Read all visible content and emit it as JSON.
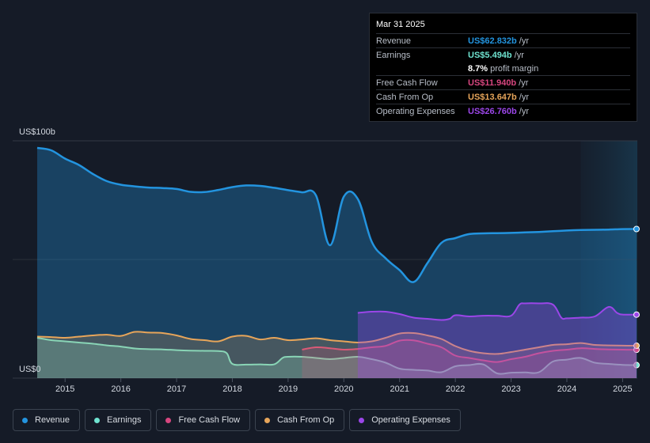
{
  "tooltip": {
    "date": "Mar 31 2025",
    "rows": [
      {
        "label": "Revenue",
        "value": "US$62.832b",
        "unit": "/yr",
        "color": "#2394df"
      },
      {
        "label": "Earnings",
        "value": "US$5.494b",
        "unit": "/yr",
        "color": "#6fe3d0"
      },
      {
        "label": "",
        "value": "8.7%",
        "unit": "profit margin",
        "color": "#ffffff"
      },
      {
        "label": "Free Cash Flow",
        "value": "US$11.940b",
        "unit": "/yr",
        "color": "#d7467f"
      },
      {
        "label": "Cash From Op",
        "value": "US$13.647b",
        "unit": "/yr",
        "color": "#e7a55a"
      },
      {
        "label": "Operating Expenses",
        "value": "US$26.760b",
        "unit": "/yr",
        "color": "#9b46e8"
      }
    ]
  },
  "legend": [
    {
      "label": "Revenue",
      "color": "#2394df"
    },
    {
      "label": "Earnings",
      "color": "#6fe3d0"
    },
    {
      "label": "Free Cash Flow",
      "color": "#d7467f"
    },
    {
      "label": "Cash From Op",
      "color": "#e7a55a"
    },
    {
      "label": "Operating Expenses",
      "color": "#9b46e8"
    }
  ],
  "chart_data": {
    "type": "area",
    "title": "",
    "y_unit": "US$ billions",
    "ylim": [
      0,
      100
    ],
    "y_tick_labels": [
      {
        "value": 100,
        "label": "US$100b"
      },
      {
        "value": 0,
        "label": "US$0"
      }
    ],
    "xlim": [
      2014.5,
      2025.25
    ],
    "x_tick_labels": [
      "2015",
      "2016",
      "2017",
      "2018",
      "2019",
      "2020",
      "2021",
      "2022",
      "2023",
      "2024",
      "2025"
    ],
    "forecast_shade_start": 2024.25,
    "series": [
      {
        "name": "Revenue",
        "color": "#2394df",
        "x": [
          2014.5,
          2014.75,
          2015.0,
          2015.25,
          2015.5,
          2015.75,
          2016.0,
          2016.25,
          2016.5,
          2016.75,
          2017.0,
          2017.25,
          2017.5,
          2017.75,
          2018.0,
          2018.25,
          2018.5,
          2018.75,
          2019.0,
          2019.25,
          2019.5,
          2019.75,
          2020.0,
          2020.25,
          2020.5,
          2020.75,
          2021.0,
          2021.25,
          2021.5,
          2021.75,
          2022.0,
          2022.25,
          2022.5,
          2022.75,
          2023.0,
          2023.25,
          2023.5,
          2023.75,
          2024.0,
          2024.25,
          2024.5,
          2024.75,
          2025.0,
          2025.25
        ],
        "values": [
          97.0,
          96.0,
          92.5,
          89.8,
          86.0,
          83.0,
          81.5,
          80.8,
          80.3,
          80.1,
          79.7,
          78.5,
          78.4,
          79.3,
          80.5,
          81.2,
          81.0,
          80.2,
          79.2,
          78.3,
          77.0,
          56.0,
          76.5,
          75.5,
          57.5,
          50.5,
          45.5,
          40.5,
          48.5,
          57.0,
          59.0,
          60.7,
          61.0,
          61.1,
          61.2,
          61.4,
          61.6,
          61.9,
          62.2,
          62.4,
          62.5,
          62.6,
          62.8,
          62.83
        ]
      },
      {
        "name": "Earnings",
        "color": "#6fe3d0",
        "x": [
          2014.5,
          2014.75,
          2015.0,
          2015.25,
          2015.5,
          2015.75,
          2016.0,
          2016.25,
          2016.5,
          2016.75,
          2017.0,
          2017.25,
          2017.5,
          2017.75,
          2017.9,
          2018.0,
          2018.25,
          2018.5,
          2018.75,
          2018.9,
          2019.0,
          2019.25,
          2019.5,
          2019.75,
          2020.0,
          2020.25,
          2020.5,
          2020.75,
          2021.0,
          2021.25,
          2021.5,
          2021.75,
          2022.0,
          2022.25,
          2022.5,
          2022.75,
          2023.0,
          2023.25,
          2023.5,
          2023.75,
          2024.0,
          2024.25,
          2024.5,
          2024.75,
          2025.0,
          2025.25
        ],
        "values": [
          17.0,
          16.0,
          15.5,
          15.0,
          14.5,
          13.8,
          13.3,
          12.5,
          12.2,
          12.1,
          11.8,
          11.6,
          11.5,
          11.4,
          10.5,
          6.0,
          5.7,
          5.8,
          5.8,
          8.5,
          9.0,
          9.0,
          8.5,
          8.0,
          8.5,
          9.0,
          8.0,
          6.5,
          4.0,
          3.5,
          3.2,
          2.5,
          5.0,
          5.5,
          5.8,
          2.0,
          2.3,
          2.4,
          2.5,
          7.0,
          7.8,
          8.5,
          6.5,
          6.0,
          5.6,
          5.49
        ]
      },
      {
        "name": "Free Cash Flow",
        "color": "#d7467f",
        "x": [
          2019.25,
          2019.5,
          2019.75,
          2020.0,
          2020.25,
          2020.5,
          2020.75,
          2021.0,
          2021.25,
          2021.5,
          2021.75,
          2022.0,
          2022.25,
          2022.5,
          2022.75,
          2023.0,
          2023.25,
          2023.5,
          2023.75,
          2024.0,
          2024.25,
          2024.5,
          2024.75,
          2025.0,
          2025.25
        ],
        "values": [
          12.0,
          13.0,
          12.6,
          12.0,
          12.3,
          13.0,
          13.6,
          15.8,
          15.9,
          14.5,
          13.0,
          9.5,
          8.5,
          7.5,
          6.8,
          8.0,
          9.0,
          10.5,
          11.5,
          12.0,
          12.6,
          12.3,
          12.1,
          12.0,
          11.94
        ]
      },
      {
        "name": "Cash From Op",
        "color": "#e7a55a",
        "x": [
          2014.5,
          2014.75,
          2015.0,
          2015.25,
          2015.5,
          2015.75,
          2016.0,
          2016.25,
          2016.5,
          2016.75,
          2017.0,
          2017.25,
          2017.5,
          2017.75,
          2018.0,
          2018.25,
          2018.5,
          2018.75,
          2019.0,
          2019.25,
          2019.5,
          2019.75,
          2020.0,
          2020.25,
          2020.5,
          2020.75,
          2021.0,
          2021.25,
          2021.5,
          2021.75,
          2022.0,
          2022.25,
          2022.5,
          2022.75,
          2023.0,
          2023.25,
          2023.5,
          2023.75,
          2024.0,
          2024.25,
          2024.5,
          2024.75,
          2025.0,
          2025.25
        ],
        "values": [
          17.5,
          17.3,
          17.0,
          17.5,
          18.0,
          18.3,
          17.8,
          19.5,
          19.2,
          19.0,
          18.0,
          16.5,
          16.0,
          15.5,
          17.5,
          17.8,
          16.3,
          17.0,
          16.0,
          16.3,
          16.8,
          16.0,
          15.5,
          15.0,
          15.5,
          17.0,
          18.8,
          19.0,
          18.0,
          16.5,
          13.5,
          11.5,
          10.5,
          10.2,
          11.0,
          12.0,
          13.0,
          14.0,
          14.3,
          14.8,
          14.0,
          13.8,
          13.7,
          13.65
        ]
      },
      {
        "name": "Operating Expenses",
        "color": "#9b46e8",
        "x": [
          2020.25,
          2020.5,
          2020.75,
          2021.0,
          2021.25,
          2021.5,
          2021.75,
          2021.9,
          2022.0,
          2022.25,
          2022.5,
          2022.75,
          2023.0,
          2023.15,
          2023.25,
          2023.5,
          2023.75,
          2023.9,
          2024.0,
          2024.25,
          2024.5,
          2024.75,
          2024.9,
          2025.0,
          2025.25
        ],
        "values": [
          27.5,
          28.0,
          28.0,
          27.0,
          25.5,
          25.0,
          24.5,
          25.0,
          26.5,
          26.0,
          26.3,
          26.3,
          26.3,
          31.0,
          31.5,
          31.5,
          31.0,
          25.5,
          25.2,
          25.5,
          26.0,
          30.0,
          27.5,
          26.8,
          26.76
        ]
      }
    ]
  }
}
